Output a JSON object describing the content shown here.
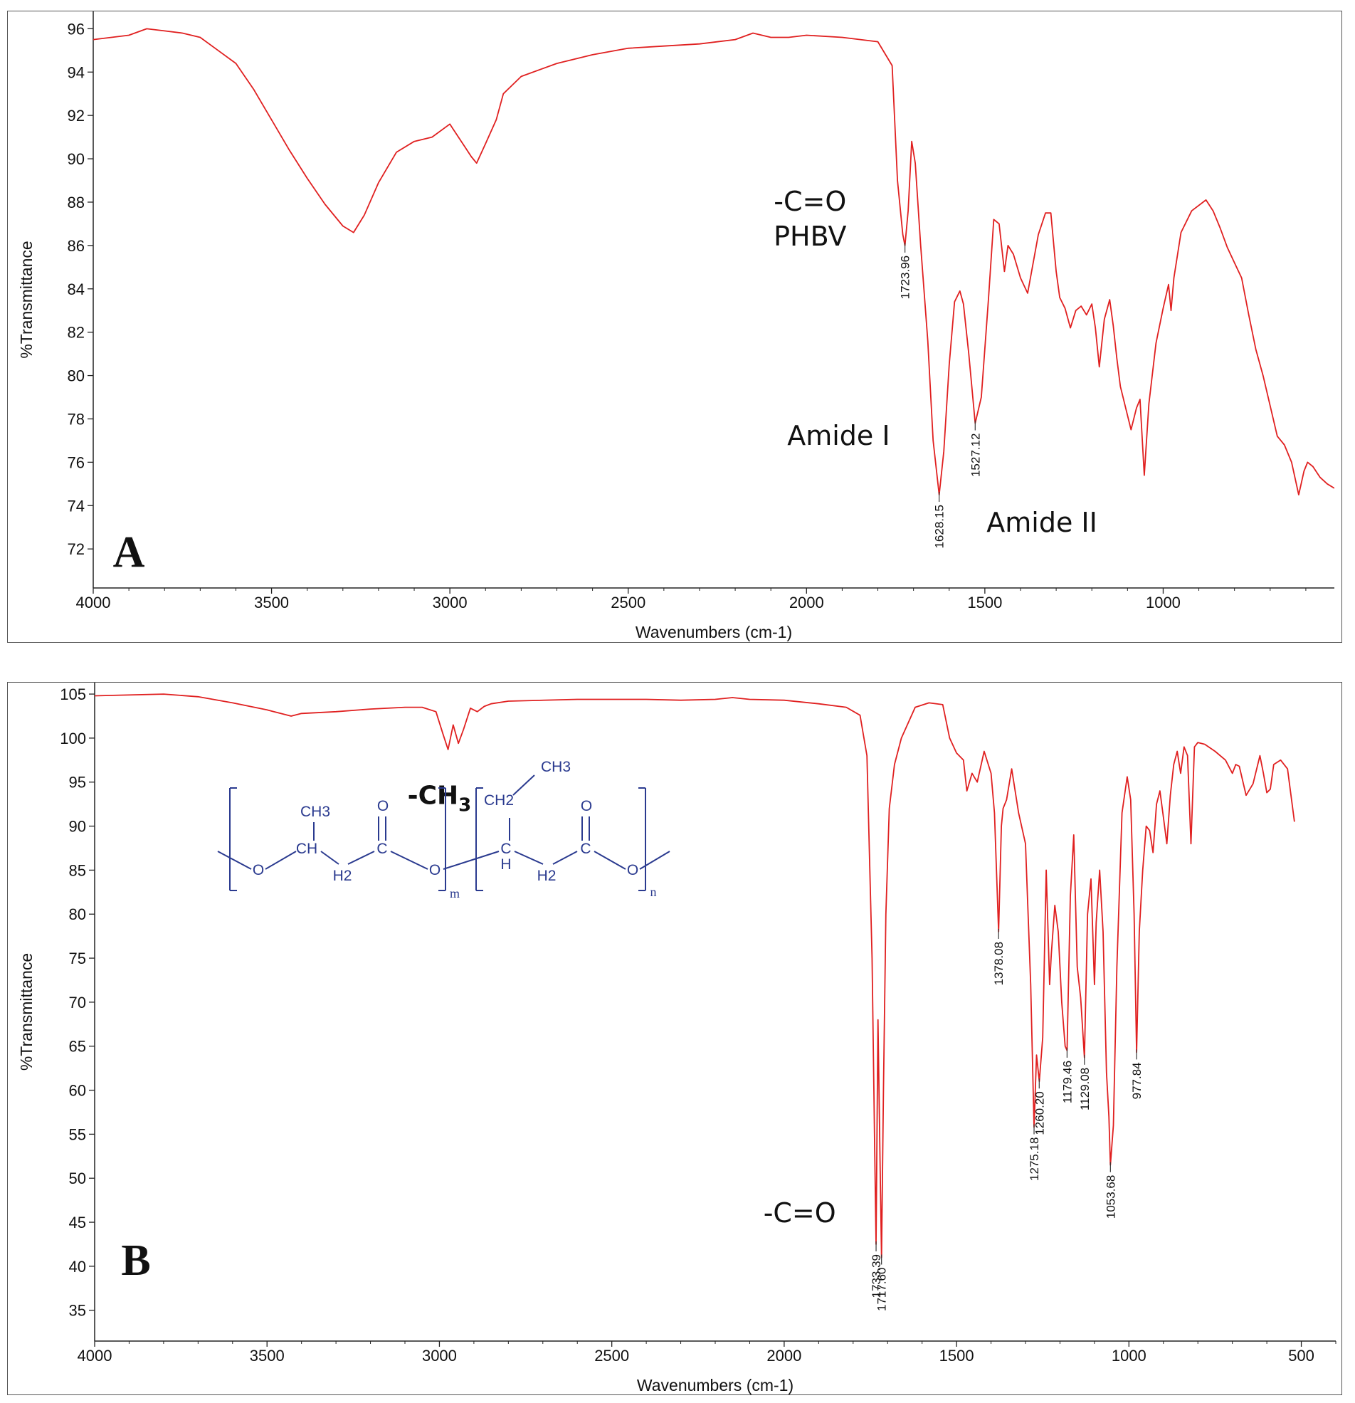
{
  "colors": {
    "spectrum": "#e02020",
    "axis": "#222222",
    "peak_marker": "#333333",
    "structure": "#2a3a8f"
  },
  "chart_data": [
    {
      "id": "A",
      "type": "line",
      "panel_letter": "A",
      "xlabel": "Wavenumbers (cm-1)",
      "ylabel": "%Transmittance",
      "xlim": [
        4000,
        520
      ],
      "ylim": [
        70.2,
        96.8
      ],
      "x_ticks": [
        4000,
        3500,
        3000,
        2500,
        2000,
        1500,
        1000
      ],
      "y_ticks": [
        72,
        74,
        76,
        78,
        80,
        82,
        84,
        86,
        88,
        90,
        92,
        94,
        96
      ],
      "grid": false,
      "series": [
        {
          "x": [
            4000,
            3900,
            3850,
            3800,
            3750,
            3700,
            3650,
            3600,
            3550,
            3500,
            3450,
            3400,
            3350,
            3300,
            3270,
            3240,
            3200,
            3150,
            3100,
            3050,
            3000,
            2960,
            2940,
            2925,
            2900,
            2870,
            2850,
            2800,
            2700,
            2600,
            2500,
            2400,
            2300,
            2200,
            2150,
            2100,
            2050,
            2000,
            1900,
            1800,
            1760,
            1745,
            1730,
            1723.96,
            1715,
            1705,
            1695,
            1680,
            1660,
            1645,
            1628.15,
            1615,
            1600,
            1585,
            1570,
            1560,
            1545,
            1527.12,
            1510,
            1490,
            1475,
            1460,
            1445,
            1435,
            1420,
            1400,
            1380,
            1370,
            1350,
            1330,
            1315,
            1300,
            1290,
            1275,
            1260,
            1245,
            1230,
            1215,
            1200,
            1190,
            1179,
            1165,
            1150,
            1140,
            1130,
            1120,
            1105,
            1090,
            1075,
            1065,
            1053,
            1040,
            1020,
            1000,
            985,
            978,
            970,
            950,
            920,
            880,
            860,
            840,
            820,
            800,
            780,
            760,
            740,
            720,
            700,
            680,
            660,
            640,
            620,
            605,
            595,
            580,
            560,
            540,
            520
          ],
          "y": [
            95.5,
            95.7,
            96.0,
            95.9,
            95.8,
            95.6,
            95.0,
            94.4,
            93.2,
            91.8,
            90.4,
            89.1,
            87.9,
            86.9,
            86.6,
            87.4,
            88.9,
            90.3,
            90.8,
            91.0,
            91.6,
            90.6,
            90.1,
            89.8,
            90.7,
            91.8,
            93.0,
            93.8,
            94.4,
            94.8,
            95.1,
            95.2,
            95.3,
            95.5,
            95.8,
            95.6,
            95.6,
            95.7,
            95.6,
            95.4,
            94.3,
            89.0,
            86.5,
            86.0,
            87.6,
            90.8,
            89.8,
            86.0,
            81.6,
            77.0,
            74.5,
            76.5,
            80.5,
            83.4,
            83.9,
            83.3,
            81.0,
            77.8,
            79.0,
            83.5,
            87.2,
            87.0,
            84.8,
            86.0,
            85.6,
            84.5,
            83.8,
            84.7,
            86.5,
            87.5,
            87.5,
            84.8,
            83.6,
            83.1,
            82.2,
            83.0,
            83.2,
            82.8,
            83.3,
            82.2,
            80.4,
            82.6,
            83.5,
            82.3,
            80.8,
            79.5,
            78.5,
            77.5,
            78.5,
            78.9,
            75.4,
            78.7,
            81.5,
            83.1,
            84.2,
            83.0,
            84.5,
            86.6,
            87.6,
            88.1,
            87.6,
            86.8,
            85.9,
            85.2,
            84.5,
            82.8,
            81.2,
            80.0,
            78.6,
            77.2,
            76.8,
            76.0,
            74.5,
            75.6,
            76.0,
            75.8,
            75.3,
            75.0,
            74.8
          ]
        }
      ],
      "peak_labels": [
        {
          "x": 1723.96,
          "y": 86.0,
          "text": "1723.96"
        },
        {
          "x": 1628.15,
          "y": 74.5,
          "text": "1628.15"
        },
        {
          "x": 1527.12,
          "y": 77.8,
          "text": "1527.12"
        }
      ],
      "annotations": [
        {
          "text": "-C=O",
          "x": 1990,
          "y": 87.6
        },
        {
          "text": "PHBV",
          "x": 1990,
          "y": 86.0
        },
        {
          "text": "Amide I",
          "x": 1910,
          "y": 76.8
        },
        {
          "text": "Amide II",
          "x": 1340,
          "y": 72.8
        }
      ]
    },
    {
      "id": "B",
      "type": "line",
      "panel_letter": "B",
      "xlabel": "Wavenumbers (cm-1)",
      "ylabel": "%Transmittance",
      "xlim": [
        4000,
        400
      ],
      "ylim": [
        31.5,
        106.3
      ],
      "x_ticks": [
        4000,
        3500,
        3000,
        2500,
        2000,
        1500,
        1000,
        500
      ],
      "y_ticks": [
        35,
        40,
        45,
        50,
        55,
        60,
        65,
        70,
        75,
        80,
        85,
        90,
        95,
        100,
        105
      ],
      "grid": false,
      "series": [
        {
          "x": [
            4000,
            3800,
            3700,
            3600,
            3500,
            3430,
            3400,
            3300,
            3200,
            3100,
            3050,
            3010,
            2990,
            2975,
            2960,
            2945,
            2930,
            2910,
            2890,
            2870,
            2850,
            2800,
            2600,
            2400,
            2300,
            2200,
            2150,
            2100,
            2000,
            1900,
            1820,
            1780,
            1760,
            1745,
            1738,
            1733.39,
            1728,
            1722,
            1717.6,
            1712,
            1705,
            1695,
            1680,
            1660,
            1620,
            1580,
            1540,
            1520,
            1500,
            1480,
            1470,
            1455,
            1440,
            1420,
            1400,
            1390,
            1378.08,
            1370,
            1365,
            1355,
            1340,
            1320,
            1300,
            1285,
            1275.18,
            1268,
            1260,
            1250,
            1240,
            1230,
            1225,
            1215,
            1205,
            1195,
            1185,
            1179.46,
            1170,
            1160,
            1150,
            1140,
            1129.08,
            1120,
            1110,
            1100,
            1095,
            1085,
            1075,
            1065,
            1058,
            1053.68,
            1045,
            1035,
            1020,
            1005,
            995,
            985,
            977.84,
            970,
            960,
            950,
            940,
            930,
            920,
            910,
            900,
            890,
            880,
            870,
            860,
            850,
            840,
            830,
            820,
            810,
            800,
            780,
            750,
            720,
            700,
            690,
            680,
            660,
            640,
            620,
            610,
            600,
            590,
            580,
            560,
            540,
            520
          ],
          "y": [
            104.8,
            105.0,
            104.7,
            104.0,
            103.2,
            102.5,
            102.8,
            103.0,
            103.3,
            103.5,
            103.5,
            103.0,
            100.5,
            98.7,
            101.5,
            99.4,
            101.0,
            103.4,
            103.0,
            103.6,
            103.9,
            104.2,
            104.4,
            104.4,
            104.3,
            104.4,
            104.6,
            104.4,
            104.3,
            103.9,
            103.5,
            102.6,
            98.0,
            75.0,
            55.0,
            42.5,
            68.0,
            52.0,
            41.0,
            60.0,
            80.0,
            92.0,
            97.0,
            100.0,
            103.5,
            104.0,
            103.8,
            100.0,
            98.3,
            97.5,
            94.0,
            96.0,
            95.0,
            98.5,
            96.0,
            91.5,
            78.0,
            90.0,
            92.0,
            93.0,
            96.5,
            91.5,
            88.0,
            72.0,
            55.8,
            64.0,
            61.0,
            66.0,
            85.0,
            72.0,
            75.5,
            81.0,
            78.0,
            70.0,
            65.0,
            64.5,
            82.0,
            89.0,
            74.0,
            70.5,
            63.7,
            80.0,
            84.0,
            72.0,
            79.0,
            85.0,
            78.0,
            62.0,
            57.0,
            51.5,
            56.0,
            74.0,
            91.5,
            95.6,
            93.0,
            80.0,
            64.3,
            78.0,
            85.0,
            90.0,
            89.5,
            87.0,
            92.5,
            94.0,
            91.0,
            88.0,
            93.5,
            97.0,
            98.5,
            96.0,
            99.0,
            98.0,
            88.0,
            99.0,
            99.5,
            99.3,
            98.5,
            97.5,
            96.0,
            97.0,
            96.8,
            93.5,
            94.8,
            98.0,
            96.0,
            93.8,
            94.2,
            97.0,
            97.5,
            96.5,
            90.5
          ]
        }
      ],
      "peak_labels": [
        {
          "x": 1733.39,
          "y": 42.5,
          "text": "1733.39"
        },
        {
          "x": 1717.6,
          "y": 41.0,
          "text": "1717.60"
        },
        {
          "x": 1378.08,
          "y": 78.0,
          "text": "1378.08"
        },
        {
          "x": 1275.18,
          "y": 55.8,
          "text": "1275.18"
        },
        {
          "x": 1260.2,
          "y": 61.0,
          "text": "1260.20"
        },
        {
          "x": 1179.46,
          "y": 64.5,
          "text": "1179.46"
        },
        {
          "x": 1129.08,
          "y": 63.7,
          "text": "1129.08"
        },
        {
          "x": 1053.68,
          "y": 51.5,
          "text": "1053.68"
        },
        {
          "x": 977.84,
          "y": 64.3,
          "text": "977.84"
        }
      ],
      "annotations": [
        {
          "text": "-CH",
          "sub": "3",
          "x": 3000,
          "y": 92.5
        },
        {
          "text": "-C=O",
          "x": 1955,
          "y": 45.0
        }
      ]
    }
  ],
  "structure": {
    "groups": [
      "CH3",
      "CH",
      "H2",
      "C",
      "O",
      "O",
      "O",
      "CH2",
      "CH3",
      "H",
      "C",
      "C",
      "O",
      "O",
      "H2"
    ],
    "repeat_m": "m",
    "repeat_n": "n"
  }
}
